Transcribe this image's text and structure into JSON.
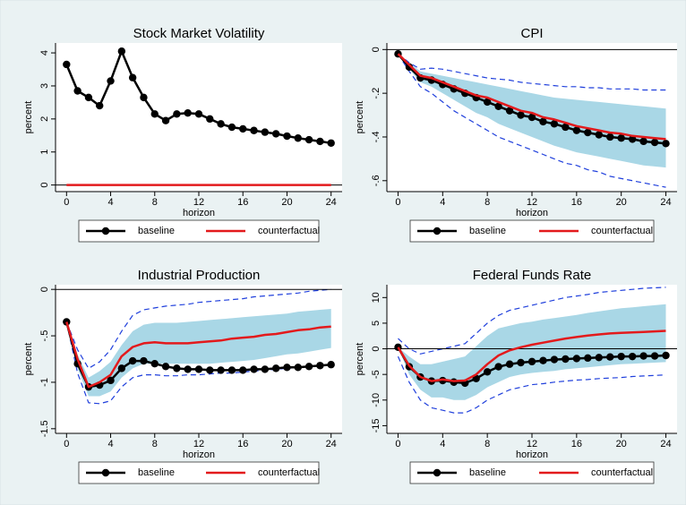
{
  "chart_data": [
    {
      "type": "line",
      "title": "Stock Market Volatility",
      "xlabel": "horizon",
      "ylabel": "percent",
      "x": [
        0,
        1,
        2,
        3,
        4,
        5,
        6,
        7,
        8,
        9,
        10,
        11,
        12,
        13,
        14,
        15,
        16,
        17,
        18,
        19,
        20,
        21,
        22,
        23,
        24
      ],
      "xlim": [
        -1,
        25
      ],
      "xticks": [
        0,
        4,
        8,
        12,
        16,
        20,
        24
      ],
      "ylim": [
        -0.2,
        4.3
      ],
      "yticks": [
        0,
        1,
        2,
        3,
        4
      ],
      "reference_line": 0,
      "legend": "bottom",
      "series": [
        {
          "name": "baseline",
          "color": "#000000",
          "marker": "circle",
          "values": [
            3.65,
            2.85,
            2.65,
            2.4,
            3.15,
            4.05,
            3.25,
            2.65,
            2.15,
            1.95,
            2.15,
            2.18,
            2.15,
            2.0,
            1.85,
            1.75,
            1.7,
            1.65,
            1.6,
            1.55,
            1.48,
            1.42,
            1.37,
            1.32,
            1.27
          ]
        },
        {
          "name": "counterfactual",
          "color": "#e31a1c",
          "values": [
            0,
            0,
            0,
            0,
            0,
            0,
            0,
            0,
            0,
            0,
            0,
            0,
            0,
            0,
            0,
            0,
            0,
            0,
            0,
            0,
            0,
            0,
            0,
            0,
            0
          ]
        }
      ]
    },
    {
      "type": "line",
      "title": "CPI",
      "xlabel": "horizon",
      "ylabel": "percent",
      "x": [
        0,
        1,
        2,
        3,
        4,
        5,
        6,
        7,
        8,
        9,
        10,
        11,
        12,
        13,
        14,
        15,
        16,
        17,
        18,
        19,
        20,
        21,
        22,
        23,
        24
      ],
      "xlim": [
        -1,
        25
      ],
      "xticks": [
        0,
        4,
        8,
        12,
        16,
        20,
        24
      ],
      "ylim": [
        -0.65,
        0.03
      ],
      "yticks": [
        0,
        {
          "value": -0.2,
          "label": "-.2"
        },
        {
          "value": -0.4,
          "label": "-.4"
        },
        {
          "value": -0.6,
          "label": "-.6"
        }
      ],
      "reference_line": 0,
      "legend": "bottom",
      "bands": {
        "inner": {
          "color": "#a9d7e6",
          "upper": [
            -0.02,
            -0.06,
            -0.1,
            -0.11,
            -0.12,
            -0.13,
            -0.14,
            -0.15,
            -0.16,
            -0.17,
            -0.18,
            -0.19,
            -0.2,
            -0.21,
            -0.22,
            -0.225,
            -0.23,
            -0.235,
            -0.24,
            -0.245,
            -0.25,
            -0.255,
            -0.26,
            -0.265,
            -0.27
          ],
          "lower": [
            -0.02,
            -0.09,
            -0.15,
            -0.17,
            -0.2,
            -0.23,
            -0.26,
            -0.29,
            -0.31,
            -0.34,
            -0.36,
            -0.38,
            -0.4,
            -0.42,
            -0.44,
            -0.455,
            -0.47,
            -0.48,
            -0.49,
            -0.5,
            -0.51,
            -0.52,
            -0.53,
            -0.535,
            -0.54
          ]
        },
        "outer": {
          "color": "#1f3fdc",
          "style": "dashed",
          "upper": [
            -0.02,
            -0.06,
            -0.09,
            -0.085,
            -0.09,
            -0.1,
            -0.11,
            -0.12,
            -0.13,
            -0.135,
            -0.14,
            -0.15,
            -0.155,
            -0.16,
            -0.165,
            -0.17,
            -0.17,
            -0.175,
            -0.175,
            -0.18,
            -0.18,
            -0.18,
            -0.185,
            -0.185,
            -0.185
          ],
          "lower": [
            -0.02,
            -0.1,
            -0.17,
            -0.2,
            -0.24,
            -0.28,
            -0.31,
            -0.34,
            -0.37,
            -0.4,
            -0.42,
            -0.44,
            -0.46,
            -0.48,
            -0.5,
            -0.52,
            -0.53,
            -0.55,
            -0.56,
            -0.58,
            -0.59,
            -0.6,
            -0.61,
            -0.62,
            -0.63
          ]
        }
      },
      "series": [
        {
          "name": "baseline",
          "color": "#000000",
          "marker": "circle",
          "values": [
            -0.02,
            -0.08,
            -0.13,
            -0.14,
            -0.16,
            -0.18,
            -0.2,
            -0.22,
            -0.24,
            -0.26,
            -0.28,
            -0.3,
            -0.31,
            -0.33,
            -0.34,
            -0.355,
            -0.37,
            -0.38,
            -0.39,
            -0.4,
            -0.405,
            -0.41,
            -0.42,
            -0.425,
            -0.43
          ]
        },
        {
          "name": "counterfactual",
          "color": "#e31a1c",
          "values": [
            -0.02,
            -0.07,
            -0.12,
            -0.13,
            -0.15,
            -0.17,
            -0.19,
            -0.21,
            -0.22,
            -0.24,
            -0.26,
            -0.28,
            -0.29,
            -0.31,
            -0.32,
            -0.335,
            -0.35,
            -0.36,
            -0.37,
            -0.38,
            -0.385,
            -0.395,
            -0.4,
            -0.405,
            -0.41
          ]
        }
      ]
    },
    {
      "type": "line",
      "title": "Industrial Production",
      "xlabel": "horizon",
      "ylabel": "percent",
      "x": [
        0,
        1,
        2,
        3,
        4,
        5,
        6,
        7,
        8,
        9,
        10,
        11,
        12,
        13,
        14,
        15,
        16,
        17,
        18,
        19,
        20,
        21,
        22,
        23,
        24
      ],
      "xlim": [
        -1,
        25
      ],
      "xticks": [
        0,
        4,
        8,
        12,
        16,
        20,
        24
      ],
      "ylim": [
        -1.55,
        0.05
      ],
      "yticks": [
        0,
        {
          "value": -0.5,
          "label": "-.5"
        },
        -1,
        {
          "value": -1.5,
          "label": "-1.5"
        }
      ],
      "reference_line": 0,
      "legend": "bottom",
      "bands": {
        "inner": {
          "color": "#a9d7e6",
          "upper": [
            -0.35,
            -0.7,
            -0.95,
            -0.88,
            -0.78,
            -0.6,
            -0.45,
            -0.38,
            -0.36,
            -0.36,
            -0.36,
            -0.35,
            -0.34,
            -0.33,
            -0.32,
            -0.31,
            -0.3,
            -0.29,
            -0.28,
            -0.27,
            -0.26,
            -0.24,
            -0.23,
            -0.22,
            -0.21
          ],
          "lower": [
            -0.35,
            -0.85,
            -1.15,
            -1.15,
            -1.1,
            -0.95,
            -0.85,
            -0.8,
            -0.8,
            -0.8,
            -0.8,
            -0.8,
            -0.8,
            -0.8,
            -0.79,
            -0.78,
            -0.77,
            -0.76,
            -0.74,
            -0.72,
            -0.7,
            -0.69,
            -0.67,
            -0.65,
            -0.63
          ]
        },
        "outer": {
          "color": "#1f3fdc",
          "style": "dashed",
          "upper": [
            -0.35,
            -0.65,
            -0.85,
            -0.78,
            -0.65,
            -0.45,
            -0.28,
            -0.22,
            -0.2,
            -0.18,
            -0.17,
            -0.16,
            -0.14,
            -0.13,
            -0.12,
            -0.11,
            -0.1,
            -0.08,
            -0.07,
            -0.06,
            -0.05,
            -0.04,
            -0.02,
            -0.01,
            0
          ],
          "lower": [
            -0.35,
            -0.9,
            -1.22,
            -1.23,
            -1.2,
            -1.05,
            -0.95,
            -0.92,
            -0.92,
            -0.93,
            -0.93,
            -0.92,
            -0.92,
            -0.91,
            -0.9,
            -0.9,
            -0.89,
            -0.88,
            -0.87,
            -0.86,
            -0.85,
            -0.84,
            -0.83,
            -0.82,
            -0.81
          ]
        }
      },
      "series": [
        {
          "name": "baseline",
          "color": "#000000",
          "marker": "circle",
          "values": [
            -0.35,
            -0.8,
            -1.05,
            -1.03,
            -0.98,
            -0.85,
            -0.77,
            -0.77,
            -0.8,
            -0.83,
            -0.85,
            -0.86,
            -0.86,
            -0.87,
            -0.87,
            -0.87,
            -0.87,
            -0.86,
            -0.86,
            -0.85,
            -0.84,
            -0.84,
            -0.83,
            -0.82,
            -0.81
          ]
        },
        {
          "name": "counterfactual",
          "color": "#e31a1c",
          "values": [
            -0.35,
            -0.75,
            -1.05,
            -1.0,
            -0.92,
            -0.72,
            -0.62,
            -0.58,
            -0.57,
            -0.58,
            -0.58,
            -0.58,
            -0.57,
            -0.56,
            -0.55,
            -0.53,
            -0.52,
            -0.51,
            -0.49,
            -0.48,
            -0.46,
            -0.44,
            -0.43,
            -0.41,
            -0.4
          ]
        }
      ]
    },
    {
      "type": "line",
      "title": "Federal Funds Rate",
      "xlabel": "horizon",
      "ylabel": "percent",
      "x": [
        0,
        1,
        2,
        3,
        4,
        5,
        6,
        7,
        8,
        9,
        10,
        11,
        12,
        13,
        14,
        15,
        16,
        17,
        18,
        19,
        20,
        21,
        22,
        23,
        24
      ],
      "xlim": [
        -1,
        25
      ],
      "xticks": [
        0,
        4,
        8,
        12,
        16,
        20,
        24
      ],
      "ylim": [
        -16.5,
        12.5
      ],
      "yticks": [
        10,
        5,
        0,
        -5,
        -10,
        -15
      ],
      "reference_line": 0,
      "legend": "bottom",
      "bands": {
        "inner": {
          "color": "#a9d7e6",
          "upper": [
            0.3,
            -1.5,
            -3,
            -3,
            -2.5,
            -2,
            -1.5,
            0.5,
            2.5,
            4,
            4.5,
            5,
            5.3,
            5.7,
            6,
            6.3,
            6.6,
            7,
            7.3,
            7.6,
            7.9,
            8.1,
            8.3,
            8.5,
            8.7
          ],
          "lower": [
            0.3,
            -5,
            -8,
            -9.5,
            -9.5,
            -10,
            -10,
            -9,
            -7.5,
            -6.5,
            -5.5,
            -5,
            -4.7,
            -4.5,
            -4.3,
            -4,
            -3.8,
            -3.6,
            -3.4,
            -3.2,
            -3,
            -2.9,
            -2.8,
            -2.7,
            -2.6
          ]
        },
        "outer": {
          "color": "#1f3fdc",
          "style": "dashed",
          "upper": [
            2,
            0,
            -1,
            -0.5,
            0,
            0.5,
            1,
            3,
            5,
            6.5,
            7.5,
            8,
            8.5,
            9,
            9.5,
            10,
            10.3,
            10.6,
            11,
            11.2,
            11.4,
            11.6,
            11.8,
            11.9,
            12
          ],
          "lower": [
            -1.5,
            -6.5,
            -10,
            -11.5,
            -12,
            -12.5,
            -12.5,
            -11.5,
            -10,
            -9,
            -8,
            -7.5,
            -7,
            -6.8,
            -6.5,
            -6.3,
            -6.1,
            -6,
            -5.8,
            -5.7,
            -5.6,
            -5.4,
            -5.3,
            -5.2,
            -5.1
          ]
        }
      },
      "series": [
        {
          "name": "baseline",
          "color": "#000000",
          "marker": "circle",
          "values": [
            0.3,
            -3.5,
            -5.5,
            -6.3,
            -6.2,
            -6.5,
            -6.7,
            -5.8,
            -4.5,
            -3.5,
            -3,
            -2.7,
            -2.5,
            -2.3,
            -2.1,
            -2,
            -1.9,
            -1.8,
            -1.7,
            -1.6,
            -1.5,
            -1.5,
            -1.4,
            -1.4,
            -1.3
          ]
        },
        {
          "name": "counterfactual",
          "color": "#e31a1c",
          "values": [
            0.3,
            -3.3,
            -5.5,
            -6.3,
            -6,
            -6.3,
            -6.2,
            -5,
            -3,
            -1.3,
            -0.3,
            0.3,
            0.8,
            1.2,
            1.6,
            2,
            2.3,
            2.6,
            2.8,
            3,
            3.1,
            3.2,
            3.3,
            3.4,
            3.5
          ]
        }
      ]
    }
  ]
}
